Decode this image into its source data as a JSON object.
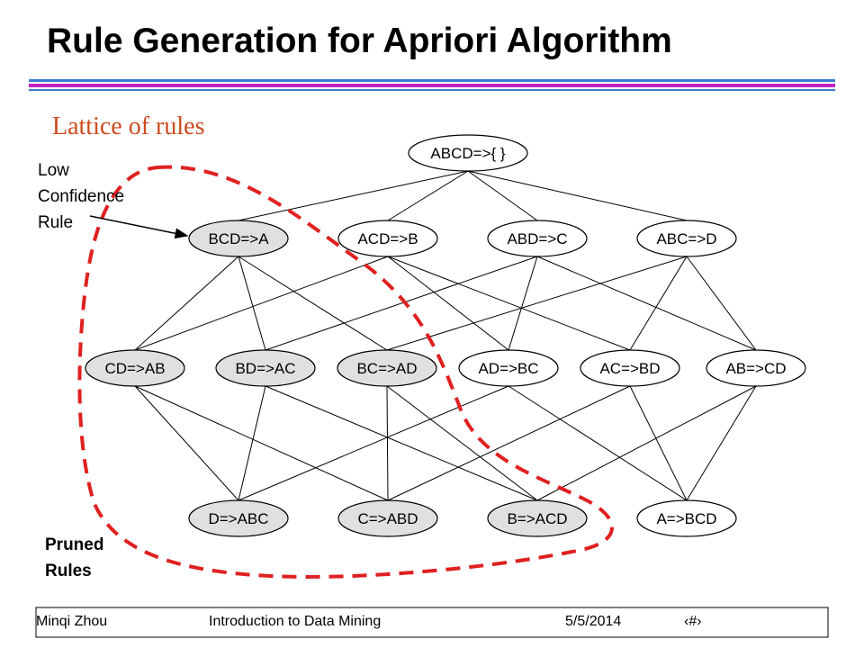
{
  "header": {
    "title": "Rule Generation for Apriori Algorithm"
  },
  "subtitle": "Lattice of rules",
  "nodes": [
    {
      "label": "ABCD=>{ }",
      "shaded": false
    },
    {
      "label": "BCD=>A",
      "shaded": true
    },
    {
      "label": "ACD=>B",
      "shaded": false
    },
    {
      "label": "ABD=>C",
      "shaded": false
    },
    {
      "label": "ABC=>D",
      "shaded": false
    },
    {
      "label": "CD=>AB",
      "shaded": true
    },
    {
      "label": "BD=>AC",
      "shaded": true
    },
    {
      "label": "BC=>AD",
      "shaded": true
    },
    {
      "label": "AD=>BC",
      "shaded": false
    },
    {
      "label": "AC=>BD",
      "shaded": false
    },
    {
      "label": "AB=>CD",
      "shaded": false
    },
    {
      "label": "D=>ABC",
      "shaded": true
    },
    {
      "label": "C=>ABD",
      "shaded": true
    },
    {
      "label": "B=>ACD",
      "shaded": true
    },
    {
      "label": "A=>BCD",
      "shaded": false
    }
  ],
  "edges": [
    [
      0,
      1
    ],
    [
      0,
      2
    ],
    [
      0,
      3
    ],
    [
      0,
      4
    ],
    [
      1,
      5
    ],
    [
      1,
      6
    ],
    [
      1,
      7
    ],
    [
      2,
      5
    ],
    [
      2,
      8
    ],
    [
      2,
      9
    ],
    [
      3,
      6
    ],
    [
      3,
      8
    ],
    [
      3,
      10
    ],
    [
      4,
      7
    ],
    [
      4,
      9
    ],
    [
      4,
      10
    ],
    [
      5,
      11
    ],
    [
      5,
      12
    ],
    [
      6,
      11
    ],
    [
      6,
      13
    ],
    [
      7,
      12
    ],
    [
      7,
      13
    ],
    [
      8,
      11
    ],
    [
      8,
      14
    ],
    [
      9,
      12
    ],
    [
      9,
      14
    ],
    [
      10,
      13
    ],
    [
      10,
      14
    ]
  ],
  "annotations": {
    "low_confidence": [
      "Low",
      "Confidence",
      "Rule"
    ],
    "pruned": [
      "Pruned",
      "Rules"
    ]
  },
  "footer": {
    "author": "Minqi Zhou",
    "course": "Introduction to Data Mining",
    "date": "5/5/2014",
    "page": "‹#›"
  }
}
